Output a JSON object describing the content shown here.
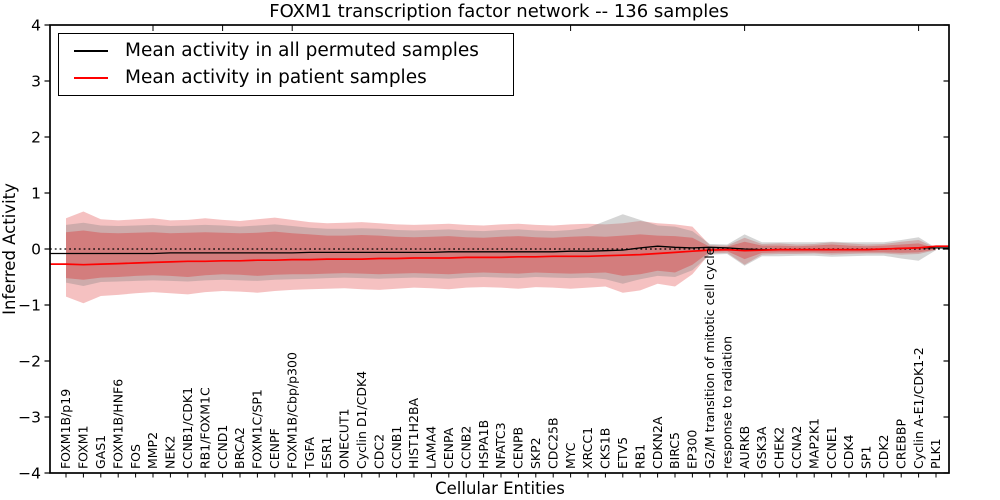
{
  "chart_data": {
    "type": "line",
    "title": "FOXM1 transcription factor network -- 136 samples",
    "xlabel": "Cellular Entities",
    "ylabel": "Inferred Activity",
    "ylim": [
      -4,
      4
    ],
    "yticks": {
      "values": [
        4,
        3,
        2,
        1,
        0,
        -1,
        -2,
        -3,
        -4
      ],
      "labels": [
        "4",
        "3",
        "2",
        "1",
        "0",
        "−1",
        "−2",
        "−3",
        "−4"
      ]
    },
    "grid": "off",
    "zero_line_style": "dotted",
    "legend": {
      "position": "upper left",
      "entries": [
        {
          "label": "Mean activity in all permuted samples",
          "color": "#000000"
        },
        {
          "label": "Mean activity in patient samples",
          "color": "#ff0000"
        }
      ]
    },
    "categories": [
      "FOXM1B/p19",
      "FOXM1",
      "GAS1",
      "FOXM1B/HNF6",
      "FOS",
      "MMP2",
      "NEK2",
      "CCNB1/CDK1",
      "RB1/FOXM1C",
      "CCND1",
      "BRCA2",
      "FOXM1C/SP1",
      "CENPF",
      "FOXM1B/Cbp/p300",
      "TGFA",
      "ESR1",
      "ONECUT1",
      "Cyclin D1/CDK4",
      "CDC2",
      "CCNB1",
      "HIST1H2BA",
      "LAMA4",
      "CENPA",
      "CCNB2",
      "HSPA1B",
      "NFATC3",
      "CENPB",
      "SKP2",
      "CDC25B",
      "MYC",
      "XRCC1",
      "CKS1B",
      "ETV5",
      "RB1",
      "CDKN2A",
      "BIRC5",
      "EP300",
      "G2/M transition of mitotic cell cycle",
      "response to radiation",
      "AURKB",
      "GSK3A",
      "CHEK2",
      "CCNA2",
      "MAP2K1",
      "CCNE1",
      "CDK4",
      "SP1",
      "CDK2",
      "CREBBP",
      "Cyclin A-E1/CDK1-2",
      "PLK1"
    ],
    "series": [
      {
        "name": "Mean activity in all permuted samples",
        "color": "#000000",
        "width": 1.3,
        "values": [
          -0.08,
          -0.08,
          -0.08,
          -0.08,
          -0.08,
          -0.08,
          -0.07,
          -0.07,
          -0.07,
          -0.07,
          -0.07,
          -0.07,
          -0.07,
          -0.07,
          -0.06,
          -0.06,
          -0.06,
          -0.06,
          -0.06,
          -0.06,
          -0.06,
          -0.06,
          -0.05,
          -0.05,
          -0.05,
          -0.05,
          -0.05,
          -0.05,
          -0.05,
          -0.04,
          -0.04,
          -0.03,
          -0.02,
          0.02,
          0.05,
          0.03,
          0.02,
          0.03,
          0.02,
          0.0,
          -0.01,
          -0.01,
          -0.01,
          -0.01,
          -0.01,
          -0.01,
          -0.01,
          0.0,
          0.01,
          0.02,
          0.02
        ]
      },
      {
        "name": "Mean activity in patient samples",
        "color": "#ff0000",
        "width": 1.7,
        "values": [
          -0.27,
          -0.28,
          -0.27,
          -0.26,
          -0.25,
          -0.24,
          -0.23,
          -0.22,
          -0.22,
          -0.21,
          -0.21,
          -0.2,
          -0.2,
          -0.19,
          -0.19,
          -0.18,
          -0.18,
          -0.18,
          -0.17,
          -0.17,
          -0.16,
          -0.16,
          -0.16,
          -0.15,
          -0.15,
          -0.15,
          -0.14,
          -0.14,
          -0.13,
          -0.13,
          -0.13,
          -0.12,
          -0.11,
          -0.1,
          -0.08,
          -0.06,
          -0.04,
          -0.02,
          -0.01,
          -0.03,
          -0.02,
          -0.01,
          -0.01,
          -0.01,
          -0.01,
          -0.01,
          -0.01,
          0.0,
          0.01,
          0.02,
          0.05
        ]
      }
    ],
    "bands": [
      {
        "name": "patient-range-outer",
        "color": "#dd3333",
        "opacity": 0.3,
        "hi": [
          0.55,
          0.67,
          0.53,
          0.51,
          0.53,
          0.55,
          0.51,
          0.52,
          0.55,
          0.52,
          0.5,
          0.53,
          0.56,
          0.52,
          0.48,
          0.46,
          0.47,
          0.48,
          0.46,
          0.44,
          0.43,
          0.44,
          0.45,
          0.43,
          0.42,
          0.44,
          0.45,
          0.43,
          0.42,
          0.44,
          0.45,
          0.44,
          0.46,
          0.5,
          0.46,
          0.44,
          0.4,
          0.07,
          0.06,
          0.2,
          0.09,
          0.1,
          0.08,
          0.09,
          0.12,
          0.1,
          0.08,
          0.09,
          0.13,
          0.16,
          0.02
        ],
        "lo": [
          -0.85,
          -0.97,
          -0.84,
          -0.82,
          -0.79,
          -0.77,
          -0.79,
          -0.81,
          -0.77,
          -0.75,
          -0.76,
          -0.78,
          -0.75,
          -0.73,
          -0.72,
          -0.71,
          -0.7,
          -0.72,
          -0.73,
          -0.71,
          -0.69,
          -0.7,
          -0.72,
          -0.69,
          -0.68,
          -0.69,
          -0.71,
          -0.68,
          -0.69,
          -0.71,
          -0.69,
          -0.67,
          -0.78,
          -0.74,
          -0.62,
          -0.67,
          -0.45,
          -0.08,
          -0.07,
          -0.28,
          -0.1,
          -0.09,
          -0.09,
          -0.08,
          -0.1,
          -0.09,
          -0.08,
          -0.08,
          -0.1,
          -0.09,
          -0.02
        ]
      },
      {
        "name": "permuted-range",
        "color": "#808080",
        "opacity": 0.33,
        "hi": [
          0.43,
          0.47,
          0.42,
          0.41,
          0.42,
          0.43,
          0.41,
          0.42,
          0.43,
          0.42,
          0.4,
          0.42,
          0.44,
          0.41,
          0.38,
          0.36,
          0.36,
          0.37,
          0.36,
          0.34,
          0.33,
          0.34,
          0.35,
          0.33,
          0.32,
          0.34,
          0.35,
          0.33,
          0.32,
          0.34,
          0.38,
          0.5,
          0.62,
          0.52,
          0.42,
          0.4,
          0.32,
          0.09,
          0.08,
          0.26,
          0.12,
          0.12,
          0.12,
          0.12,
          0.13,
          0.12,
          0.12,
          0.12,
          0.16,
          0.21,
          0.02
        ],
        "lo": [
          -0.6,
          -0.66,
          -0.59,
          -0.58,
          -0.57,
          -0.56,
          -0.57,
          -0.58,
          -0.56,
          -0.55,
          -0.56,
          -0.57,
          -0.55,
          -0.54,
          -0.53,
          -0.52,
          -0.51,
          -0.52,
          -0.53,
          -0.52,
          -0.51,
          -0.52,
          -0.53,
          -0.51,
          -0.5,
          -0.51,
          -0.52,
          -0.5,
          -0.51,
          -0.52,
          -0.51,
          -0.54,
          -0.62,
          -0.54,
          -0.48,
          -0.5,
          -0.38,
          -0.1,
          -0.09,
          -0.3,
          -0.13,
          -0.13,
          -0.12,
          -0.12,
          -0.14,
          -0.13,
          -0.12,
          -0.12,
          -0.17,
          -0.21,
          -0.02
        ]
      },
      {
        "name": "patient-range-inner",
        "color": "#dd3333",
        "opacity": 0.38,
        "hi": [
          0.3,
          0.33,
          0.29,
          0.28,
          0.29,
          0.3,
          0.28,
          0.29,
          0.3,
          0.29,
          0.28,
          0.29,
          0.31,
          0.28,
          0.26,
          0.24,
          0.24,
          0.25,
          0.24,
          0.22,
          0.21,
          0.22,
          0.23,
          0.21,
          0.2,
          0.22,
          0.23,
          0.21,
          0.2,
          0.22,
          0.23,
          0.22,
          0.24,
          0.26,
          0.24,
          0.23,
          0.2,
          0.04,
          0.04,
          0.13,
          0.06,
          0.06,
          0.05,
          0.06,
          0.08,
          0.06,
          0.05,
          0.06,
          0.08,
          0.1,
          0.01
        ],
        "lo": [
          -0.52,
          -0.55,
          -0.51,
          -0.5,
          -0.48,
          -0.47,
          -0.48,
          -0.5,
          -0.47,
          -0.45,
          -0.46,
          -0.48,
          -0.46,
          -0.45,
          -0.45,
          -0.44,
          -0.43,
          -0.44,
          -0.45,
          -0.44,
          -0.43,
          -0.44,
          -0.45,
          -0.43,
          -0.42,
          -0.43,
          -0.44,
          -0.42,
          -0.43,
          -0.44,
          -0.43,
          -0.42,
          -0.48,
          -0.45,
          -0.39,
          -0.42,
          -0.28,
          -0.05,
          -0.04,
          -0.18,
          -0.07,
          -0.06,
          -0.06,
          -0.06,
          -0.07,
          -0.06,
          -0.06,
          -0.06,
          -0.07,
          -0.06,
          -0.01
        ]
      }
    ]
  }
}
